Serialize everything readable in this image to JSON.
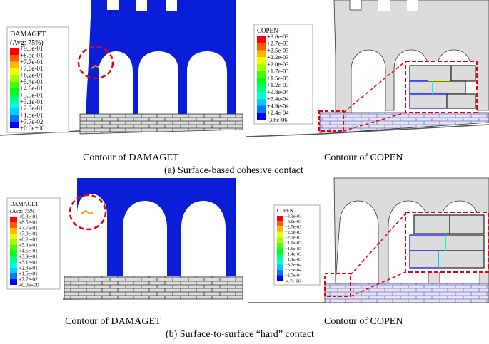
{
  "panels": [
    {
      "id": "a-left",
      "legend": {
        "title": "DAMAGET",
        "subtitle": "(Avg: 75%)",
        "values": [
          "+9.3e-01",
          "+8.5e-01",
          "+7.7e-01",
          "+7.0e-01",
          "+6.2e-01",
          "+5.4e-01",
          "+4.6e-01",
          "+3.9e-01",
          "+3.1e-01",
          "+2.3e-01",
          "+1.5e-01",
          "+7.7e-02",
          "+0.0e+00"
        ]
      },
      "caption": "Contour of DAMAGET"
    },
    {
      "id": "a-right",
      "legend": {
        "title": "COPEN",
        "subtitle": "",
        "values": [
          "+3.0e-03",
          "+2.7e-03",
          "+2.5e-03",
          "+2.2e-03",
          "+2.0e-03",
          "+1.7e-03",
          "+1.5e-03",
          "+1.2e-03",
          "+9.8e-04",
          "+7.4e-04",
          "+4.9e-04",
          "+2.4e-04",
          "-3.8e-06"
        ]
      },
      "caption": "Contour of COPEN"
    },
    {
      "id": "b-left",
      "legend": {
        "title": "DAMAGET",
        "subtitle": "(Avg: 75%)",
        "values": [
          "+9.3e-01",
          "+8.5e-01",
          "+7.7e-01",
          "+7.0e-01",
          "+6.2e-01",
          "+5.4e-01",
          "+4.6e-01",
          "+3.9e-01",
          "+3.1e-01",
          "+2.3e-01",
          "+1.5e-01",
          "+7.7e-02",
          "+0.0e+00"
        ]
      },
      "caption": "Contour of DAMAGET"
    },
    {
      "id": "b-right",
      "legend": {
        "title": "COPEN",
        "subtitle": "",
        "values": [
          "+3.3e-03",
          "+3.0e-03",
          "+2.7e-03",
          "+2.5e-03",
          "+2.2e-03",
          "+1.9e-03",
          "+1.6e-03",
          "+1.4e-03",
          "+1.1e-03",
          "+8.2e-04",
          "+5.5e-04",
          "+2.7e-04",
          "-4.7e-06"
        ]
      },
      "caption": "Contour of COPEN"
    }
  ],
  "subcaptions": {
    "a": "(a) Surface-based cohesive contact",
    "b": "(b) Surface-to-surface “hard” contact"
  },
  "colors": {
    "scale": [
      "#ff0000",
      "#ff5b00",
      "#ffb700",
      "#ecff00",
      "#a2ff00",
      "#44ff00",
      "#00ff1e",
      "#00ff7a",
      "#00ffd7",
      "#00ccff",
      "#0079ff",
      "#0000ff"
    ],
    "damage_blue": "#0a1ed8",
    "masonry_gray": "#dcdcdc",
    "highlight_red": "#e8000b"
  }
}
